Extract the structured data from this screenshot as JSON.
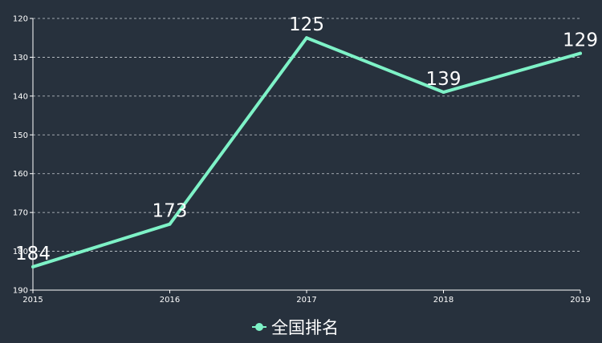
{
  "chart_data": {
    "type": "line",
    "categories": [
      "2015",
      "2016",
      "2017",
      "2018",
      "2019"
    ],
    "series": [
      {
        "name": "全国排名",
        "values": [
          184,
          173,
          125,
          139,
          129
        ]
      }
    ],
    "y_ticks": [
      120,
      130,
      140,
      150,
      160,
      170,
      180,
      190
    ],
    "ylim": [
      120,
      190
    ],
    "y_inverted": true,
    "grid": "horizontal dashed",
    "legend_position": "bottom",
    "colors": {
      "background": "#27313d",
      "line": "#7ef2c7",
      "grid": "#c8cdd3",
      "axis": "#ffffff",
      "text": "#ffffff"
    }
  }
}
